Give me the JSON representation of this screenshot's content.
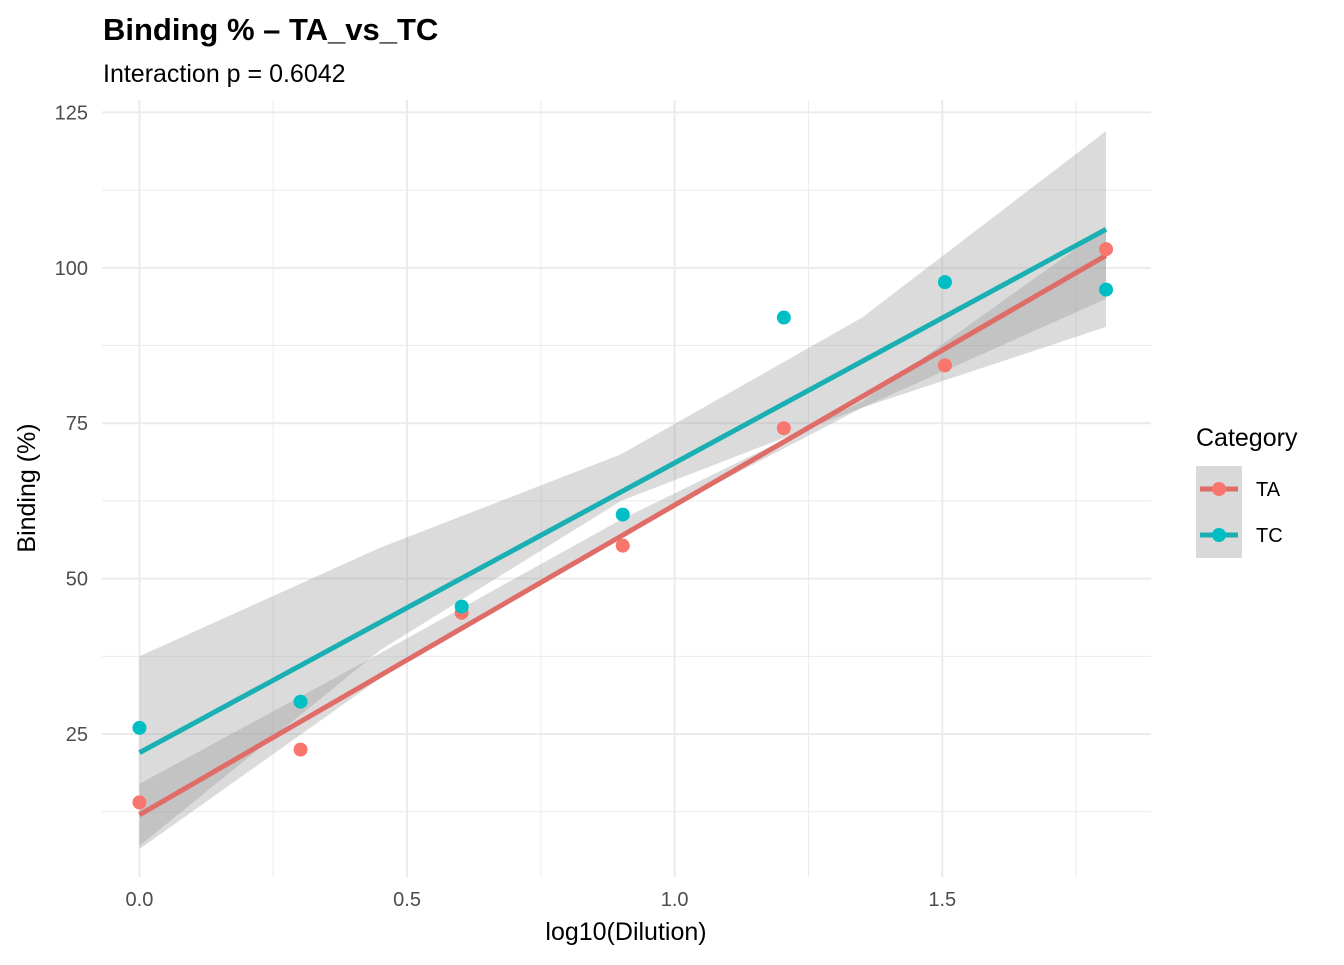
{
  "chart_data": {
    "type": "scatter",
    "title": "Binding % – TA_vs_TC",
    "subtitle": "Interaction p = 0.6042",
    "xlabel": "log10(Dilution)",
    "ylabel": "Binding (%)",
    "xlim": [
      -0.07,
      1.89
    ],
    "ylim": [
      2,
      127
    ],
    "x_ticks": [
      0.0,
      0.5,
      1.0,
      1.5
    ],
    "x_tick_labels": [
      "0.0",
      "0.5",
      "1.0",
      "1.5"
    ],
    "x_minor_ticks": [
      0.25,
      0.75,
      1.25,
      1.75
    ],
    "y_ticks": [
      25,
      50,
      75,
      100,
      125
    ],
    "y_tick_labels": [
      "25",
      "50",
      "75",
      "100",
      "125"
    ],
    "y_minor_ticks": [
      12.5,
      37.5,
      62.5,
      87.5,
      112.5
    ],
    "grid": true,
    "legend": {
      "title": "Category",
      "position": "right"
    },
    "colors": {
      "ribbon": "#999999",
      "grid": "#ebebeb",
      "legend_key_bg": "#d9d9d9"
    },
    "series": [
      {
        "name": "TA",
        "color": "#F8766D",
        "line_color": "#E06C68",
        "x": [
          0.0,
          0.301,
          0.602,
          0.903,
          1.204,
          1.505,
          1.806
        ],
        "y": [
          14.0,
          22.5,
          44.5,
          55.3,
          74.2,
          84.3,
          103.0
        ],
        "fit": {
          "x": [
            0.0,
            1.806
          ],
          "y": [
            12.0,
            102.0
          ]
        },
        "ci_lower": [
          6.5,
          34.0,
          57.3,
          77.5,
          95.0
        ],
        "ci_upper": [
          17.0,
          38.0,
          59.5,
          78.5,
          106.5
        ]
      },
      {
        "name": "TC",
        "color": "#00BFC4",
        "line_color": "#1AB0B3",
        "x": [
          0.0,
          0.301,
          0.602,
          0.903,
          1.204,
          1.505,
          1.806
        ],
        "y": [
          26.0,
          30.2,
          45.5,
          60.3,
          92.0,
          97.7,
          96.5
        ],
        "fit": {
          "x": [
            0.0,
            1.806
          ],
          "y": [
            22.0,
            106.2
          ]
        },
        "ci_lower": [
          7.0,
          38.5,
          62.5,
          77.5,
          90.5
        ],
        "ci_upper": [
          37.5,
          55.0,
          70.0,
          92.0,
          122.0
        ]
      }
    ],
    "ci_x": [
      0.0,
      0.45,
      0.9,
      1.35,
      1.806
    ]
  }
}
